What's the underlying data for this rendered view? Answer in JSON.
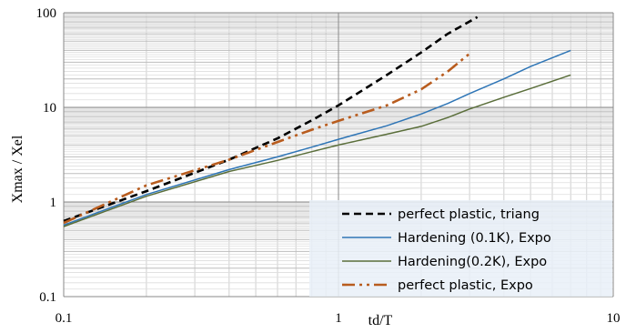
{
  "chart_data": {
    "type": "line",
    "title": "",
    "xlabel": "td/T",
    "ylabel": "Xmax / Xel",
    "x_scale": "log",
    "y_scale": "log",
    "xlim": [
      0.1,
      10
    ],
    "ylim": [
      0.1,
      100
    ],
    "grid": true,
    "legend_position": "bottom-right",
    "x_tick_labels": [
      "0.1",
      "1",
      "10"
    ],
    "y_tick_labels": [
      "0.1",
      "1",
      "10",
      "100"
    ],
    "series": [
      {
        "name": "perfect plastic, triang",
        "color": "#000000",
        "style": "dashed",
        "points": [
          [
            0.1,
            0.63
          ],
          [
            0.2,
            1.3
          ],
          [
            0.4,
            2.8
          ],
          [
            0.6,
            4.7
          ],
          [
            0.8,
            7.3
          ],
          [
            1.0,
            10.5
          ],
          [
            1.5,
            22
          ],
          [
            2.0,
            38
          ],
          [
            2.5,
            60
          ],
          [
            3.2,
            90
          ]
        ]
      },
      {
        "name": "Hardening (0.1K), Expo",
        "color": "#2e75b6",
        "style": "solid",
        "points": [
          [
            0.1,
            0.57
          ],
          [
            0.2,
            1.2
          ],
          [
            0.4,
            2.2
          ],
          [
            0.6,
            3.0
          ],
          [
            0.8,
            3.8
          ],
          [
            1.0,
            4.6
          ],
          [
            1.5,
            6.4
          ],
          [
            2.0,
            8.5
          ],
          [
            2.5,
            11
          ],
          [
            3.0,
            14
          ],
          [
            4.0,
            20
          ],
          [
            5.0,
            27
          ],
          [
            7.0,
            40
          ]
        ]
      },
      {
        "name": "Hardening(0.2K), Expo",
        "color": "#5a6e3a",
        "style": "solid",
        "points": [
          [
            0.1,
            0.55
          ],
          [
            0.2,
            1.15
          ],
          [
            0.4,
            2.1
          ],
          [
            0.6,
            2.75
          ],
          [
            0.8,
            3.4
          ],
          [
            1.0,
            4.0
          ],
          [
            1.5,
            5.2
          ],
          [
            2.0,
            6.3
          ],
          [
            2.5,
            7.8
          ],
          [
            3.0,
            9.6
          ],
          [
            4.0,
            12.8
          ],
          [
            5.0,
            15.8
          ],
          [
            7.0,
            22
          ]
        ]
      },
      {
        "name": "perfect plastic, Expo",
        "color": "#b85c1e",
        "style": "dash-dot-dot",
        "points": [
          [
            0.1,
            0.6
          ],
          [
            0.2,
            1.5
          ],
          [
            0.4,
            2.8
          ],
          [
            0.6,
            4.3
          ],
          [
            0.8,
            5.8
          ],
          [
            1.0,
            7.2
          ],
          [
            1.5,
            10.5
          ],
          [
            2.0,
            15.5
          ],
          [
            2.5,
            24
          ],
          [
            3.0,
            37
          ]
        ]
      }
    ]
  }
}
